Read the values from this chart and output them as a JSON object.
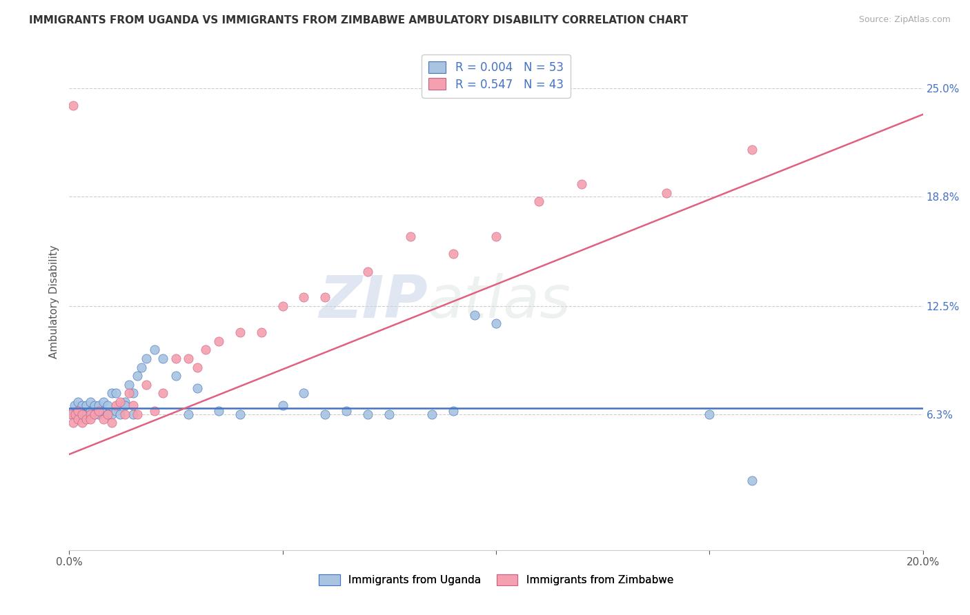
{
  "title": "IMMIGRANTS FROM UGANDA VS IMMIGRANTS FROM ZIMBABWE AMBULATORY DISABILITY CORRELATION CHART",
  "source": "Source: ZipAtlas.com",
  "xlabel": "",
  "ylabel": "Ambulatory Disability",
  "xlim": [
    0.0,
    0.2
  ],
  "ylim": [
    -0.015,
    0.27
  ],
  "ytick_labels_right": [
    "25.0%",
    "18.8%",
    "12.5%",
    "6.3%"
  ],
  "ytick_values_right": [
    0.25,
    0.188,
    0.125,
    0.063
  ],
  "legend_uganda": "Immigrants from Uganda",
  "legend_zimbabwe": "Immigrants from Zimbabwe",
  "R_uganda": "0.004",
  "N_uganda": "53",
  "R_zimbabwe": "0.547",
  "N_zimbabwe": "43",
  "color_uganda": "#a8c4e0",
  "color_zimbabwe": "#f4a0b0",
  "color_line_uganda": "#4472c4",
  "color_line_zimbabwe": "#e06080",
  "watermark": "ZIPatlas",
  "uganda_x": [
    0.0008,
    0.001,
    0.0012,
    0.0015,
    0.002,
    0.002,
    0.003,
    0.003,
    0.0035,
    0.004,
    0.004,
    0.005,
    0.005,
    0.006,
    0.006,
    0.007,
    0.007,
    0.008,
    0.008,
    0.009,
    0.009,
    0.01,
    0.01,
    0.011,
    0.011,
    0.012,
    0.013,
    0.013,
    0.014,
    0.015,
    0.015,
    0.016,
    0.017,
    0.018,
    0.02,
    0.022,
    0.025,
    0.028,
    0.03,
    0.035,
    0.04,
    0.05,
    0.055,
    0.06,
    0.065,
    0.07,
    0.075,
    0.085,
    0.09,
    0.095,
    0.1,
    0.15,
    0.16
  ],
  "uganda_y": [
    0.063,
    0.065,
    0.068,
    0.063,
    0.07,
    0.063,
    0.065,
    0.068,
    0.063,
    0.063,
    0.068,
    0.065,
    0.07,
    0.063,
    0.068,
    0.063,
    0.068,
    0.065,
    0.07,
    0.063,
    0.068,
    0.075,
    0.063,
    0.065,
    0.075,
    0.063,
    0.07,
    0.068,
    0.08,
    0.063,
    0.075,
    0.085,
    0.09,
    0.095,
    0.1,
    0.095,
    0.085,
    0.063,
    0.078,
    0.065,
    0.063,
    0.068,
    0.075,
    0.063,
    0.065,
    0.063,
    0.063,
    0.063,
    0.065,
    0.12,
    0.115,
    0.063,
    0.025
  ],
  "zimbabwe_x": [
    0.0005,
    0.001,
    0.0015,
    0.002,
    0.002,
    0.003,
    0.003,
    0.004,
    0.005,
    0.005,
    0.006,
    0.007,
    0.008,
    0.009,
    0.01,
    0.011,
    0.012,
    0.013,
    0.014,
    0.015,
    0.016,
    0.018,
    0.02,
    0.022,
    0.025,
    0.028,
    0.03,
    0.032,
    0.035,
    0.04,
    0.045,
    0.05,
    0.055,
    0.06,
    0.07,
    0.08,
    0.09,
    0.1,
    0.11,
    0.12,
    0.14,
    0.16,
    0.001
  ],
  "zimbabwe_y": [
    0.063,
    0.058,
    0.063,
    0.06,
    0.065,
    0.058,
    0.063,
    0.06,
    0.063,
    0.06,
    0.063,
    0.065,
    0.06,
    0.063,
    0.058,
    0.068,
    0.07,
    0.063,
    0.075,
    0.068,
    0.063,
    0.08,
    0.065,
    0.075,
    0.095,
    0.095,
    0.09,
    0.1,
    0.105,
    0.11,
    0.11,
    0.125,
    0.13,
    0.13,
    0.145,
    0.165,
    0.155,
    0.165,
    0.185,
    0.195,
    0.19,
    0.215,
    0.24
  ],
  "uganda_line_x": [
    0.0,
    0.2
  ],
  "uganda_line_y": [
    0.0665,
    0.0665
  ],
  "zimbabwe_line_x": [
    0.0,
    0.2
  ],
  "zimbabwe_line_y": [
    0.04,
    0.235
  ]
}
